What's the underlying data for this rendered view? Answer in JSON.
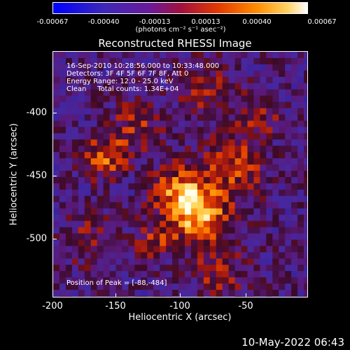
{
  "colorbar": {
    "ticks": [
      "-0.00067",
      "-0.00040",
      "-0.00013",
      "0.00013",
      "0.00040",
      "0.00067"
    ],
    "units_text": "(photons cm⁻² s⁻¹ asec⁻²)"
  },
  "title": "Reconstructed RHESSI Image",
  "info": {
    "time_range": "16-Sep-2010 10:28:56.000 to 10:33:48.000",
    "detectors": "Detectors: 3F 4F 5F 6F 7F 8F, Att 0",
    "energy": "Energy Range: 12.0 - 25.0 keV",
    "clean": "Clean     Total counts: 1.34E+04",
    "peak": "Position of Peak = [-88,-484]"
  },
  "axes": {
    "xlabel": "Heliocentric X (arcsec)",
    "ylabel": "Heliocentric Y (arcsec)",
    "xticks": [
      "-200",
      "-150",
      "-100",
      "-50"
    ],
    "yticks": [
      "-400",
      "-450",
      "-500"
    ]
  },
  "timestamp": "10-May-2022 06:43",
  "chart_data": {
    "type": "heatmap",
    "title": "Reconstructed RHESSI Image",
    "xlabel": "Heliocentric X (arcsec)",
    "ylabel": "Heliocentric Y (arcsec)",
    "xlim": [
      -200,
      -10
    ],
    "ylim": [
      -545,
      -360
    ],
    "color_range": [
      -0.00067,
      0.00067
    ],
    "peak": [
      -88,
      -484
    ]
  }
}
